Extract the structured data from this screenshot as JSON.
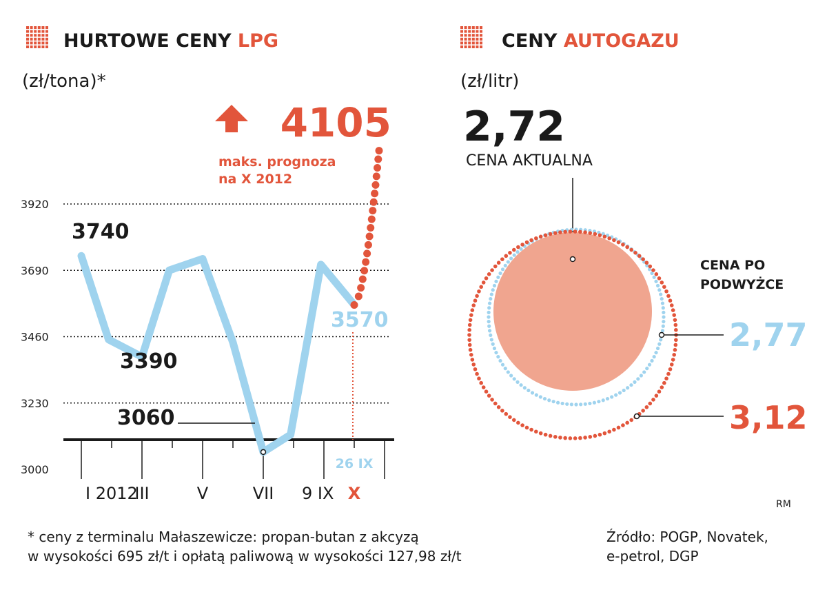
{
  "left": {
    "title_black": "HURTOWE CENY ",
    "title_accent": "LPG",
    "unit": "(zł/tona)*",
    "forecast_value": "4105",
    "forecast_note_line1": "maks. prognoza",
    "forecast_note_line2": "na X 2012",
    "marker_label_26ix": "26 IX"
  },
  "right": {
    "title_black": "CENY ",
    "title_accent": "AUTOGAZU",
    "unit": "(zł/litr)",
    "current_value": "2,72",
    "current_label": "CENA AKTUALNA",
    "after_label_line1": "CENA PO",
    "after_label_line2": "PODWYŻCE",
    "after_value_blue": "2,77",
    "after_value_red": "3,12"
  },
  "footnote_line1": "* ceny z terminalu Małaszewicze: propan-butan z akcyzą",
  "footnote_line2": "w wysokości 695 zł/t i opłatą paliwową w wysokości 127,98 zł/t",
  "source_line1": "Źródło: POGP, Novatek,",
  "source_line2": "e-petrol, DGP",
  "credit": "RM",
  "colors": {
    "accent": "#e2553b",
    "line": "#9fd3ee",
    "circle_fill": "#f0a58f",
    "dark": "#1a1a1a"
  },
  "chart_data": [
    {
      "type": "line",
      "title": "HURTOWE CENY LPG",
      "ylabel": "(zł/tona)*",
      "yticks": [
        "3920",
        "3690",
        "3460",
        "3230",
        "3000"
      ],
      "ylim": [
        3000,
        3920
      ],
      "x_tick_labels": [
        {
          "label": "I 2012",
          "pos": 0
        },
        {
          "label": "III",
          "pos": 2
        },
        {
          "label": "V",
          "pos": 4
        },
        {
          "label": "VII",
          "pos": 6
        },
        {
          "label": "9 IX",
          "pos": 7.8
        },
        {
          "label": "X",
          "pos": 9
        }
      ],
      "series": [
        {
          "x": [
            0,
            0.9,
            2.0,
            2.9,
            4.0,
            5.0,
            6.0,
            6.9,
            7.9,
            9.0
          ],
          "values": [
            3740,
            3450,
            3390,
            3690,
            3730,
            3440,
            3060,
            3120,
            3710,
            3570
          ]
        }
      ],
      "forecast": {
        "from_value": 3570,
        "to_value": 4105,
        "label": "maks. prognoza na X 2012"
      },
      "annotations": [
        {
          "text": "3740",
          "value": 3740
        },
        {
          "text": "3390",
          "value": 3390
        },
        {
          "text": "3060",
          "value": 3060
        },
        {
          "text": "3570",
          "value": 3570
        }
      ],
      "grid": "dotted horizontal"
    },
    {
      "type": "bubble",
      "title": "CENY AUTOGAZU",
      "ylabel": "(zł/litr)",
      "series": [
        {
          "name": "CENA AKTUALNA",
          "value": 2.72
        },
        {
          "name": "CENA PO PODWYŻCE",
          "value": 2.77
        },
        {
          "name": "CENA PO PODWYŻCE",
          "value": 3.12
        }
      ]
    }
  ]
}
